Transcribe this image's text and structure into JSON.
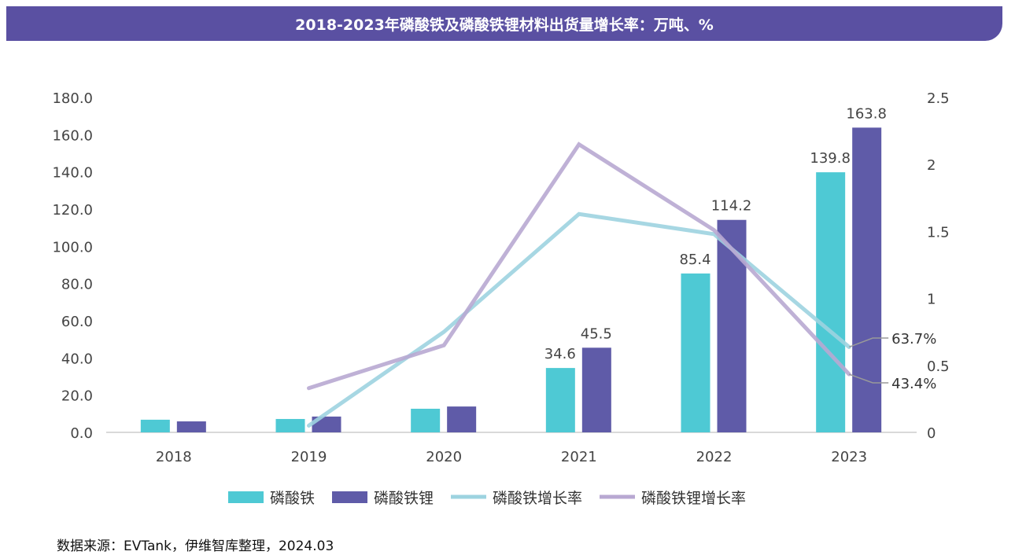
{
  "chart_data": {
    "type": "bar",
    "title": "2018-2023年磷酸铁及磷酸铁锂材料出货量增长率：万吨、%",
    "categories": [
      "2018",
      "2019",
      "2020",
      "2021",
      "2022",
      "2023"
    ],
    "y_left": {
      "range": [
        0,
        180
      ],
      "ticks": [
        "0.0",
        "20.0",
        "40.0",
        "60.0",
        "80.0",
        "100.0",
        "120.0",
        "140.0",
        "160.0",
        "180.0"
      ]
    },
    "y_right": {
      "range": [
        0,
        2.5
      ],
      "ticks": [
        "0",
        "0.5",
        "1",
        "1.5",
        "2",
        "2.5"
      ]
    },
    "series": [
      {
        "name": "磷酸铁",
        "type": "bar",
        "axis": "left",
        "color": "#4ec9d4",
        "values": [
          6.8,
          7.2,
          12.7,
          34.6,
          85.4,
          139.8
        ],
        "labels": [
          "",
          "",
          "",
          "34.6",
          "85.4",
          "139.8"
        ]
      },
      {
        "name": "磷酸铁锂",
        "type": "bar",
        "axis": "left",
        "color": "#5f5ba8",
        "values": [
          5.9,
          8.5,
          13.9,
          45.5,
          114.2,
          163.8
        ],
        "labels": [
          "",
          "",
          "",
          "45.5",
          "114.2",
          "163.8"
        ]
      },
      {
        "name": "磷酸铁增长率",
        "type": "line",
        "axis": "right",
        "color": "#9dd3e0",
        "values": [
          null,
          0.05,
          0.75,
          1.63,
          1.48,
          0.637
        ],
        "end_label": "63.7%"
      },
      {
        "name": "磷酸铁锂增长率",
        "type": "line",
        "axis": "right",
        "color": "#b8a8d2",
        "values": [
          null,
          0.33,
          0.65,
          2.15,
          1.51,
          0.434
        ],
        "end_label": "43.4%"
      }
    ],
    "legend": "bottom",
    "grid": false
  },
  "source": "数据来源：EVTank，伊维智库整理，2024.03"
}
